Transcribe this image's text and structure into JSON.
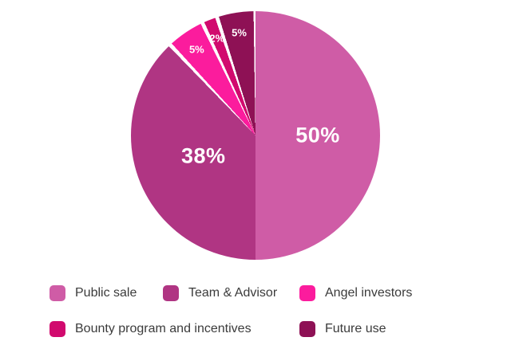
{
  "chart_data": {
    "type": "pie",
    "title": "",
    "slices": [
      {
        "label": "Public sale",
        "value": 50,
        "display": "50%",
        "color": "#cf5ca6"
      },
      {
        "label": "Team & Advisor",
        "value": 38,
        "display": "38%",
        "color": "#b03583"
      },
      {
        "label": "Angel investors",
        "value": 5,
        "display": "5%",
        "color": "#fb1c9d"
      },
      {
        "label": "Bounty program and incentives",
        "value": 2,
        "display": "2%",
        "color": "#d10a6e"
      },
      {
        "label": "Future use",
        "value": 5,
        "display": "5%",
        "color": "#8e1155"
      }
    ],
    "start_angle_deg": 0,
    "direction": "clockwise",
    "legend_position": "bottom",
    "label_color": "#ffffff",
    "background": "#ffffff",
    "label_radius": [
      0.5,
      0.45,
      0.84,
      0.84,
      0.84
    ]
  }
}
